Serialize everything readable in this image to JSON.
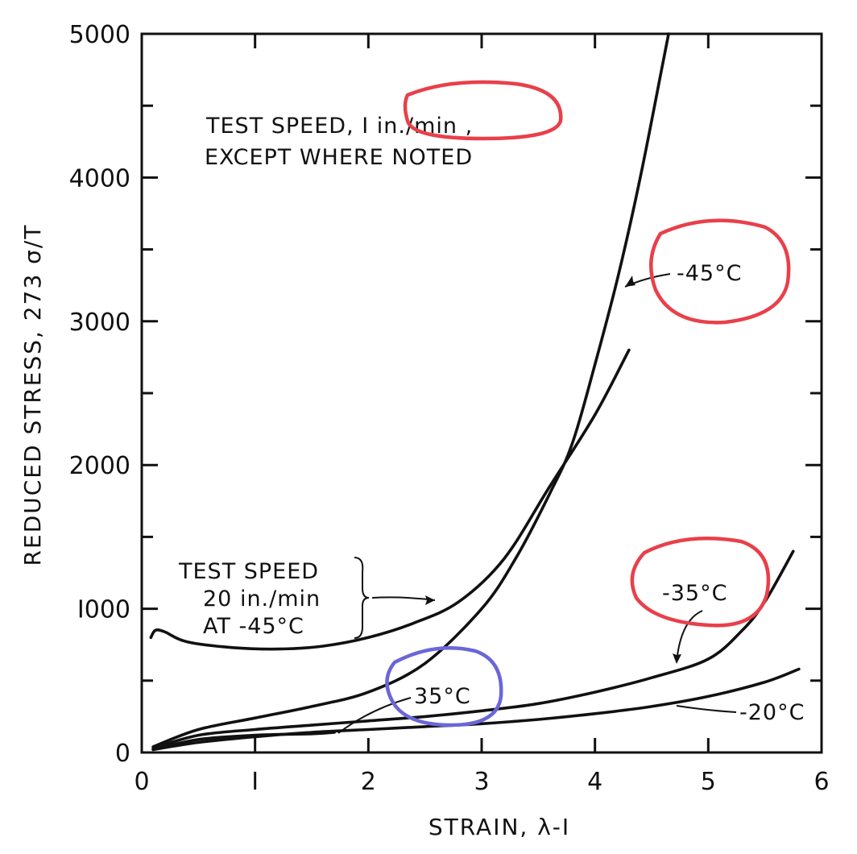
{
  "chart_data": {
    "type": "line",
    "title": "",
    "xlabel": "STRAIN,  λ-I",
    "ylabel": "REDUCED STRESS, 273 σ/T",
    "xlim": [
      0,
      6
    ],
    "ylim": [
      0,
      5000
    ],
    "x_ticks": [
      "0",
      "I",
      "2",
      "3",
      "4",
      "5",
      "6"
    ],
    "x_tick_values": [
      0,
      1,
      2,
      3,
      4,
      5,
      6
    ],
    "y_ticks": [
      "0",
      "I000",
      "2000",
      "3000",
      "4000",
      "5000"
    ],
    "y_tick_values": [
      0,
      1000,
      2000,
      3000,
      4000,
      5000
    ],
    "grid": false,
    "series": [
      {
        "name": "-45°C",
        "x": [
          0.1,
          0.5,
          1.0,
          1.5,
          2.0,
          2.5,
          3.0,
          3.3,
          3.6,
          3.8,
          4.0,
          4.2,
          4.4,
          4.6,
          4.65
        ],
        "y": [
          40,
          160,
          240,
          320,
          420,
          620,
          1000,
          1350,
          1800,
          2150,
          2700,
          3300,
          4000,
          4800,
          5000
        ]
      },
      {
        "name": "Test speed 20 in./min at -45°C",
        "x": [
          0.08,
          0.12,
          0.2,
          0.4,
          0.8,
          1.2,
          1.6,
          2.0,
          2.4,
          2.8,
          3.2,
          3.6,
          4.0,
          4.3
        ],
        "y": [
          800,
          850,
          840,
          770,
          730,
          720,
          740,
          800,
          900,
          1050,
          1350,
          1850,
          2350,
          2800
        ]
      },
      {
        "name": "-35°C",
        "x": [
          0.1,
          0.5,
          1.0,
          1.5,
          2.0,
          2.5,
          3.0,
          3.5,
          4.0,
          4.5,
          5.0,
          5.3,
          5.5,
          5.75
        ],
        "y": [
          30,
          120,
          160,
          190,
          220,
          250,
          290,
          340,
          420,
          520,
          650,
          850,
          1050,
          1400
        ]
      },
      {
        "name": "35°C",
        "x": [
          0.1,
          0.5,
          1.0,
          1.5,
          1.7
        ],
        "y": [
          20,
          90,
          120,
          130,
          140
        ]
      },
      {
        "name": "-20°C",
        "x": [
          0.1,
          0.5,
          1.0,
          1.5,
          2.0,
          2.5,
          3.0,
          3.5,
          4.0,
          4.5,
          5.0,
          5.5,
          5.8
        ],
        "y": [
          20,
          70,
          110,
          140,
          160,
          180,
          200,
          230,
          270,
          320,
          390,
          490,
          580
        ]
      }
    ],
    "annotations": [
      {
        "id": "test_speed",
        "lines": [
          "TEST  SPEED,  I in./min ,",
          "EXCEPT  WHERE  NOTED"
        ]
      },
      {
        "id": "fast_speed",
        "lines": [
          "TEST  SPEED",
          "20  in./min",
          "AT  -45°C"
        ]
      },
      {
        "id": "label_m45",
        "text": "-45°C"
      },
      {
        "id": "label_m35",
        "text": "-35°C"
      },
      {
        "id": "label_p35",
        "text": "35°C"
      },
      {
        "id": "label_m20",
        "text": "-20°C"
      }
    ],
    "hand_markings": {
      "red": "#e8404a",
      "blue": "#6b66d8"
    },
    "line_color": "#111111"
  }
}
